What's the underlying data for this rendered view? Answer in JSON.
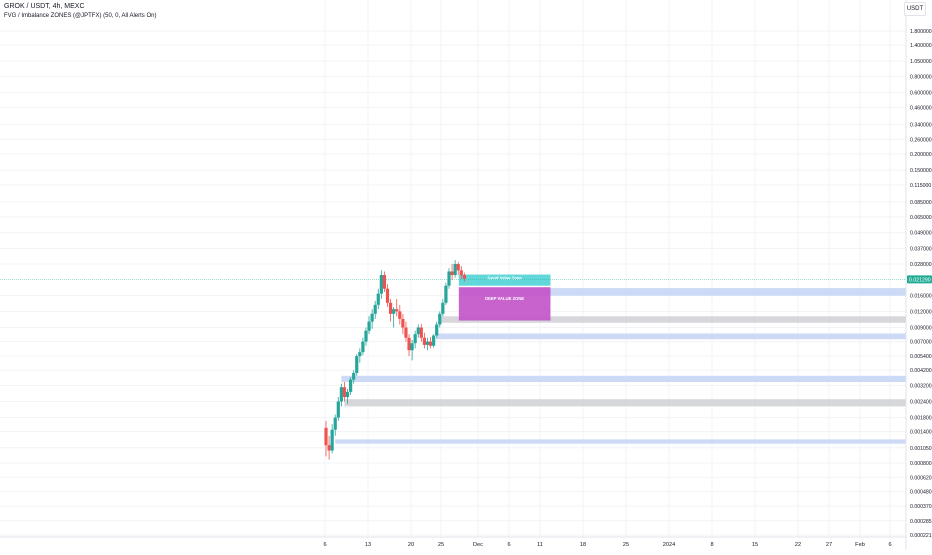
{
  "header": {
    "symbol_line": "GROK / USDT, 4h, MEXC",
    "indicator_line": "FVG / Imbalance ZONES (@JPTFX) (50, 0, All Alerts On)"
  },
  "price_scale": {
    "currency": "USDT",
    "last_price": "0.021290",
    "last_price_color": "#22ab94"
  },
  "chart_data": {
    "type": "candlestick",
    "y_scale": "log",
    "ylim": [
      0.00021,
      2.7
    ],
    "y_ticks": [
      "1.800000",
      "1.400000",
      "1.050000",
      "0.800000",
      "0.600000",
      "0.460000",
      "0.340000",
      "0.260000",
      "0.200000",
      "0.150000",
      "0.115000",
      "0.085000",
      "0.065000",
      "0.049000",
      "0.037000",
      "0.028000",
      "0.016000",
      "0.012000",
      "0.009000",
      "0.007000",
      "0.005400",
      "0.004200",
      "0.003200",
      "0.002400",
      "0.001800",
      "0.001400",
      "0.001050",
      "0.000800",
      "0.000620",
      "0.000480",
      "0.000370",
      "0.000285",
      "0.000221"
    ],
    "x_ticks": [
      "6",
      "13",
      "20",
      "25",
      "Dec",
      "6",
      "11",
      "18",
      "25",
      "2024",
      "8",
      "15",
      "22",
      "27",
      "Feb",
      "6"
    ],
    "candle_colors": {
      "up": "#26a69a",
      "down": "#ef5350"
    },
    "candles": [
      {
        "x": 0.0,
        "o": 0.0015,
        "h": 0.0017,
        "l": 0.0009,
        "c": 0.0011
      },
      {
        "x": 0.5,
        "o": 0.0011,
        "h": 0.0013,
        "l": 0.00085,
        "c": 0.001
      },
      {
        "x": 1.0,
        "o": 0.001,
        "h": 0.0016,
        "l": 0.00095,
        "c": 0.00145
      },
      {
        "x": 1.5,
        "o": 0.00145,
        "h": 0.0019,
        "l": 0.0013,
        "c": 0.0018
      },
      {
        "x": 2.0,
        "o": 0.0018,
        "h": 0.0026,
        "l": 0.0017,
        "c": 0.0024
      },
      {
        "x": 2.5,
        "o": 0.0024,
        "h": 0.0033,
        "l": 0.0022,
        "c": 0.0031
      },
      {
        "x": 3.0,
        "o": 0.0031,
        "h": 0.0034,
        "l": 0.0024,
        "c": 0.0026
      },
      {
        "x": 3.5,
        "o": 0.0026,
        "h": 0.003,
        "l": 0.0023,
        "c": 0.00285
      },
      {
        "x": 4.0,
        "o": 0.00285,
        "h": 0.0037,
        "l": 0.0027,
        "c": 0.00355
      },
      {
        "x": 4.5,
        "o": 0.00355,
        "h": 0.0042,
        "l": 0.0033,
        "c": 0.004
      },
      {
        "x": 5.0,
        "o": 0.004,
        "h": 0.0056,
        "l": 0.0038,
        "c": 0.0054
      },
      {
        "x": 5.5,
        "o": 0.0054,
        "h": 0.0062,
        "l": 0.0048,
        "c": 0.0058
      },
      {
        "x": 6.0,
        "o": 0.0058,
        "h": 0.0075,
        "l": 0.0055,
        "c": 0.007
      },
      {
        "x": 6.5,
        "o": 0.007,
        "h": 0.009,
        "l": 0.0065,
        "c": 0.0085
      },
      {
        "x": 7.0,
        "o": 0.0085,
        "h": 0.011,
        "l": 0.008,
        "c": 0.01
      },
      {
        "x": 7.5,
        "o": 0.01,
        "h": 0.0125,
        "l": 0.0088,
        "c": 0.0115
      },
      {
        "x": 8.0,
        "o": 0.0115,
        "h": 0.0145,
        "l": 0.0105,
        "c": 0.0135
      },
      {
        "x": 8.5,
        "o": 0.0135,
        "h": 0.018,
        "l": 0.0125,
        "c": 0.0165
      },
      {
        "x": 9.0,
        "o": 0.0165,
        "h": 0.025,
        "l": 0.015,
        "c": 0.023
      },
      {
        "x": 9.5,
        "o": 0.023,
        "h": 0.0245,
        "l": 0.017,
        "c": 0.018
      },
      {
        "x": 10.0,
        "o": 0.018,
        "h": 0.0195,
        "l": 0.013,
        "c": 0.014
      },
      {
        "x": 10.5,
        "o": 0.014,
        "h": 0.015,
        "l": 0.01,
        "c": 0.0115
      },
      {
        "x": 11.0,
        "o": 0.0115,
        "h": 0.013,
        "l": 0.009,
        "c": 0.0125
      },
      {
        "x": 11.5,
        "o": 0.0125,
        "h": 0.015,
        "l": 0.011,
        "c": 0.012
      },
      {
        "x": 12.0,
        "o": 0.012,
        "h": 0.0135,
        "l": 0.0095,
        "c": 0.0105
      },
      {
        "x": 12.5,
        "o": 0.0105,
        "h": 0.0115,
        "l": 0.008,
        "c": 0.009
      },
      {
        "x": 13.0,
        "o": 0.009,
        "h": 0.01,
        "l": 0.007,
        "c": 0.0075
      },
      {
        "x": 13.5,
        "o": 0.0075,
        "h": 0.008,
        "l": 0.0054,
        "c": 0.006
      },
      {
        "x": 14.0,
        "o": 0.006,
        "h": 0.0072,
        "l": 0.005,
        "c": 0.0068
      },
      {
        "x": 14.5,
        "o": 0.0068,
        "h": 0.0085,
        "l": 0.0062,
        "c": 0.008
      },
      {
        "x": 15.0,
        "o": 0.008,
        "h": 0.0095,
        "l": 0.0075,
        "c": 0.009
      },
      {
        "x": 15.5,
        "o": 0.009,
        "h": 0.0096,
        "l": 0.007,
        "c": 0.0075
      },
      {
        "x": 16.0,
        "o": 0.0075,
        "h": 0.0082,
        "l": 0.0062,
        "c": 0.0066
      },
      {
        "x": 16.5,
        "o": 0.0066,
        "h": 0.0075,
        "l": 0.006,
        "c": 0.007
      },
      {
        "x": 17.0,
        "o": 0.007,
        "h": 0.0076,
        "l": 0.0062,
        "c": 0.0065
      },
      {
        "x": 17.5,
        "o": 0.0065,
        "h": 0.008,
        "l": 0.0063,
        "c": 0.0078
      },
      {
        "x": 18.0,
        "o": 0.0078,
        "h": 0.01,
        "l": 0.0074,
        "c": 0.0095
      },
      {
        "x": 18.5,
        "o": 0.0095,
        "h": 0.012,
        "l": 0.009,
        "c": 0.0115
      },
      {
        "x": 19.0,
        "o": 0.0115,
        "h": 0.015,
        "l": 0.011,
        "c": 0.014
      },
      {
        "x": 19.5,
        "o": 0.014,
        "h": 0.02,
        "l": 0.0135,
        "c": 0.019
      },
      {
        "x": 20.0,
        "o": 0.019,
        "h": 0.026,
        "l": 0.018,
        "c": 0.0245
      },
      {
        "x": 20.5,
        "o": 0.0245,
        "h": 0.028,
        "l": 0.021,
        "c": 0.023
      },
      {
        "x": 21.0,
        "o": 0.023,
        "h": 0.03,
        "l": 0.022,
        "c": 0.028
      },
      {
        "x": 21.5,
        "o": 0.028,
        "h": 0.029,
        "l": 0.023,
        "c": 0.025
      },
      {
        "x": 22.0,
        "o": 0.025,
        "h": 0.027,
        "l": 0.0215,
        "c": 0.023
      },
      {
        "x": 22.5,
        "o": 0.023,
        "h": 0.024,
        "l": 0.0205,
        "c": 0.0215
      }
    ],
    "zones": [
      {
        "label": "",
        "top": 0.0182,
        "bottom": 0.0159,
        "x_start": 22.0,
        "color": "#c7d6f5"
      },
      {
        "label": "",
        "top": 0.011,
        "bottom": 0.0098,
        "x_start": 18.5,
        "color": "#d1d3d6"
      },
      {
        "label": "",
        "top": 0.0081,
        "bottom": 0.0073,
        "x_start": 18.0,
        "color": "#c7d6f5"
      },
      {
        "label": "",
        "top": 0.0038,
        "bottom": 0.0034,
        "x_start": 2.5,
        "color": "#c7d6f5"
      },
      {
        "label": "",
        "top": 0.0025,
        "bottom": 0.0022,
        "x_start": 3.0,
        "color": "#d1d3d6"
      },
      {
        "label": "",
        "top": 0.00122,
        "bottom": 0.00113,
        "x_start": 1.5,
        "color": "#c7d6f5"
      }
    ],
    "labeled_boxes": [
      {
        "label": "Good Value Zone",
        "top": 0.0232,
        "bottom": 0.019,
        "x_start": 21.6,
        "x_end": 36.5,
        "color": "#54d4d6"
      },
      {
        "label": "DEEP VALUE ZONE",
        "top": 0.0185,
        "bottom": 0.0102,
        "x_start": 21.6,
        "x_end": 36.5,
        "color": "#c355c9"
      }
    ]
  }
}
